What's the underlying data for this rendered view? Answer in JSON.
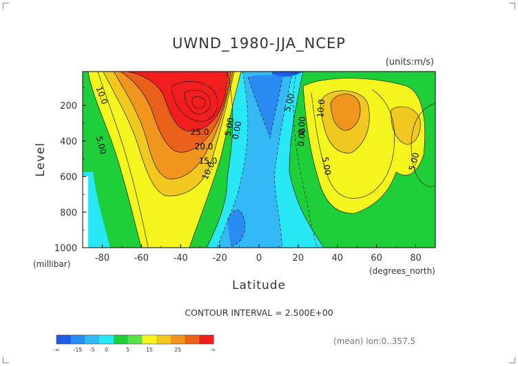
{
  "chart_data": {
    "type": "heatmap",
    "title": "UWND_1980-JJA_NCEP",
    "units_label": "(units:m/s)",
    "xlabel": "Latitude",
    "ylabel": "Level",
    "y_unit_label": "(millibar)",
    "x_unit_label": "(degrees_north)",
    "xlim": [
      -90,
      90
    ],
    "ylim": [
      1000,
      10
    ],
    "x_ticks": [
      -80,
      -60,
      -40,
      -20,
      0,
      20,
      40,
      60,
      80
    ],
    "y_ticks": [
      200,
      400,
      600,
      800,
      1000
    ],
    "contour_labels": [
      "10.0",
      "5.00",
      "25.0",
      "20.0",
      "15.0",
      "10.0",
      "5.00",
      "0.00",
      "5.00",
      "0.00",
      "10.0",
      "0.00",
      "5.00",
      "5.00"
    ],
    "footer": "CONTOUR INTERVAL = 2.500E+00",
    "note": "(mean) lon:0..357.5",
    "colorbar": {
      "ticks": [
        "-∞",
        "-15",
        "-5",
        "0",
        "5",
        "15",
        "25",
        "∞"
      ],
      "colors": [
        "#1c5fe6",
        "#2a8cf0",
        "#35b9f5",
        "#29e8f5",
        "#1ecf3a",
        "#5ae04a",
        "#f5f51e",
        "#f0c820",
        "#f0961e",
        "#e8601a",
        "#f01e1e"
      ]
    },
    "jets": [
      {
        "lat": -30,
        "level": 200,
        "speed": 36
      },
      {
        "lat": 42,
        "level": 200,
        "speed": 18
      },
      {
        "lat": 78,
        "level": 300,
        "speed": 12
      }
    ]
  }
}
